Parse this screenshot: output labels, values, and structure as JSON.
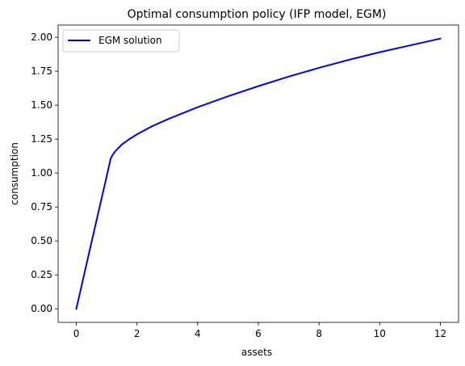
{
  "chart_data": {
    "type": "line",
    "title": "Optimal consumption policy (IFP model, EGM)",
    "xlabel": "assets",
    "ylabel": "consumption",
    "xlim": [
      -0.6,
      12.6
    ],
    "ylim": [
      -0.1,
      2.09
    ],
    "x_ticks": [
      0,
      2,
      4,
      6,
      8,
      10,
      12
    ],
    "x_tick_labels": [
      "0",
      "2",
      "4",
      "6",
      "8",
      "10",
      "12"
    ],
    "y_ticks": [
      0,
      0.25,
      0.5,
      0.75,
      1.0,
      1.25,
      1.5,
      1.75,
      2.0
    ],
    "y_tick_labels": [
      "0.00",
      "0.25",
      "0.50",
      "0.75",
      "1.00",
      "1.25",
      "1.50",
      "1.75",
      "2.00"
    ],
    "grid": false,
    "legend": {
      "position": "top-left",
      "entries": [
        "EGM solution"
      ]
    },
    "series": [
      {
        "name": "EGM solution",
        "color": "#0000ff",
        "x": [
          0,
          0.5,
          1.0,
          1.13,
          1.2,
          1.3,
          1.5,
          1.75,
          2.0,
          2.5,
          3.0,
          3.5,
          4.0,
          5.0,
          6.0,
          7.0,
          8.0,
          9.0,
          10.0,
          11.0,
          12.0
        ],
        "y": [
          0,
          0.49,
          0.975,
          1.105,
          1.135,
          1.165,
          1.21,
          1.25,
          1.285,
          1.345,
          1.395,
          1.44,
          1.485,
          1.565,
          1.64,
          1.71,
          1.775,
          1.835,
          1.89,
          1.94,
          1.99
        ]
      }
    ]
  }
}
